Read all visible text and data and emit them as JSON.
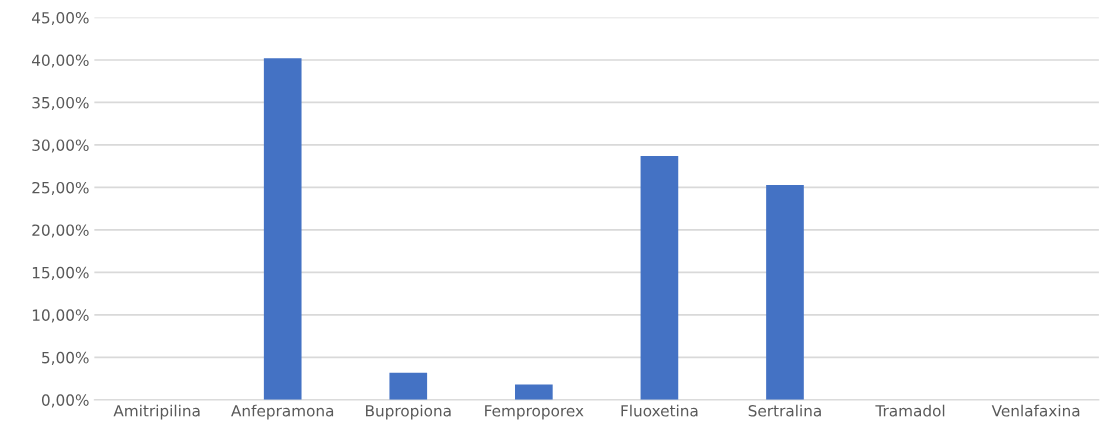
{
  "chart_data": {
    "type": "bar",
    "categories": [
      "Amitripilina",
      "Anfepramona",
      "Bupropiona",
      "Femproporex",
      "Fluoxetina",
      "Sertralina",
      "Tramadol",
      "Venlafaxina"
    ],
    "values": [
      0,
      40.2,
      3.2,
      1.8,
      28.7,
      25.3,
      0,
      0
    ],
    "color": "#4472c4",
    "ylim": [
      0,
      45
    ],
    "yticks": [
      {
        "value": 0,
        "label": "0,00%"
      },
      {
        "value": 5,
        "label": "5,00%"
      },
      {
        "value": 10,
        "label": "10,00%"
      },
      {
        "value": 15,
        "label": "15,00%"
      },
      {
        "value": 20,
        "label": "20,00%"
      },
      {
        "value": 25,
        "label": "25,00%"
      },
      {
        "value": 30,
        "label": "30,00%"
      },
      {
        "value": 35,
        "label": "35,00%"
      },
      {
        "value": 40,
        "label": "40,00%"
      },
      {
        "value": 45,
        "label": "45,00%"
      }
    ],
    "grid": "y"
  }
}
